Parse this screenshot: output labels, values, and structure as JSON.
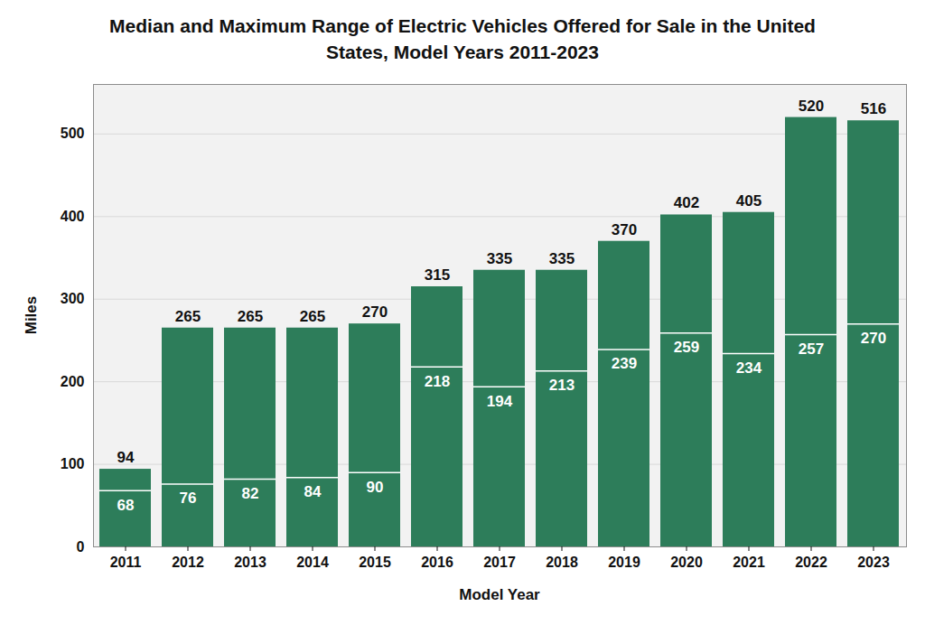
{
  "chart_data": {
    "type": "bar",
    "title": "Median and Maximum Range of Electric Vehicles Offered for Sale in the United States, Model Years 2011-2023",
    "x_label": "Model Year",
    "y_label": "Miles",
    "categories": [
      "2011",
      "2012",
      "2013",
      "2014",
      "2015",
      "2016",
      "2017",
      "2018",
      "2019",
      "2020",
      "2021",
      "2022",
      "2023"
    ],
    "series": [
      {
        "color": "#2d7d5a",
        "values": [
          94,
          265,
          265,
          265,
          270,
          315,
          335,
          335,
          370,
          402,
          405,
          520,
          516
        ]
      },
      {
        "color": "#2d7d5a",
        "values": [
          68,
          76,
          82,
          84,
          90,
          218,
          194,
          213,
          239,
          259,
          234,
          257,
          270
        ]
      }
    ],
    "ylim": [
      0,
      560
    ],
    "yticks": [
      0,
      100,
      200,
      300,
      400,
      500
    ],
    "grid": true,
    "data_labels": true
  }
}
